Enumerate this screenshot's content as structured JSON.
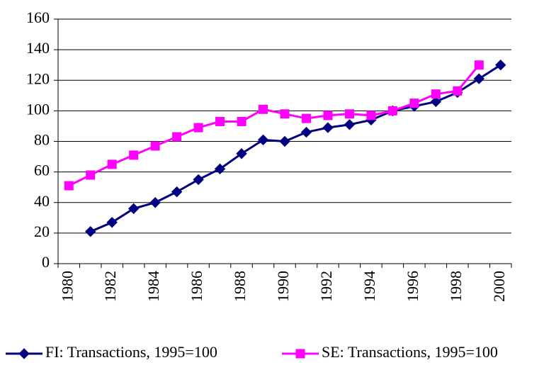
{
  "chart_data": {
    "type": "line",
    "categories": [
      "1980",
      null,
      "1982",
      null,
      "1984",
      null,
      "1986",
      null,
      "1988",
      null,
      "1990",
      null,
      "1992",
      null,
      "1994",
      null,
      "1996",
      null,
      "1998",
      null,
      "2000"
    ],
    "series": [
      {
        "name": "FI: Transactions, 1995=100",
        "color": "#000080",
        "marker": "diamond",
        "values": [
          null,
          21,
          27,
          36,
          40,
          47,
          55,
          62,
          72,
          81,
          80,
          86,
          89,
          91,
          94,
          100,
          103,
          106,
          112,
          121,
          130
        ]
      },
      {
        "name": "SE: Transactions, 1995=100",
        "color": "#ff00ff",
        "marker": "square",
        "values": [
          51,
          58,
          65,
          71,
          77,
          83,
          89,
          93,
          93,
          101,
          98,
          95,
          97,
          98,
          97,
          100,
          105,
          111,
          113,
          130,
          null
        ]
      }
    ],
    "ylim": [
      0,
      160
    ],
    "yticks": [
      0,
      20,
      40,
      60,
      80,
      100,
      120,
      140,
      160
    ],
    "grid": true,
    "legend": "bottom"
  }
}
